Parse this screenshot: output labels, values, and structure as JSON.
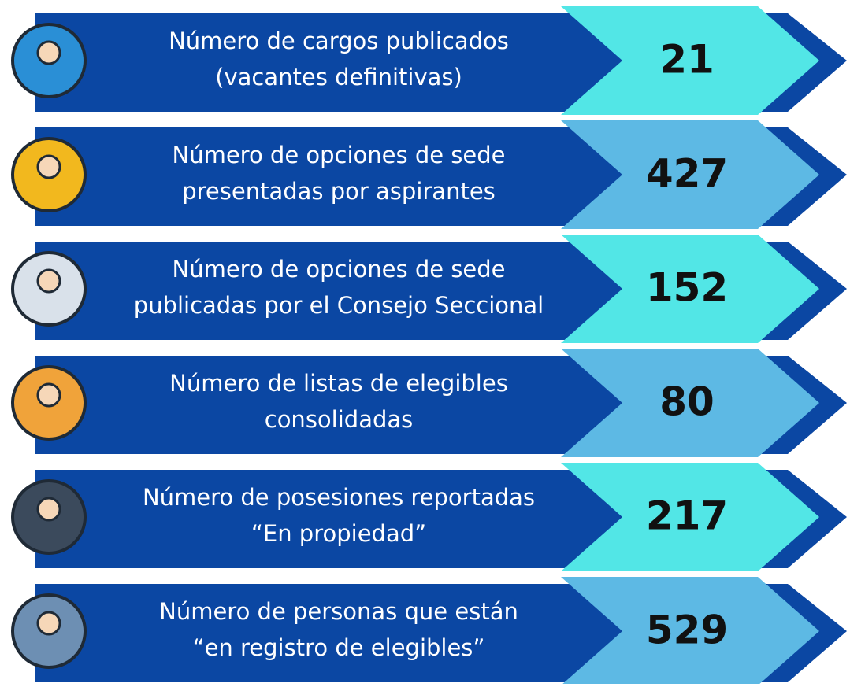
{
  "rows": [
    {
      "label": [
        "Número de cargos publicados",
        "(vacantes definitivas)"
      ],
      "value": 21
    },
    {
      "label": [
        "Número de opciones de sede",
        "presentadas por aspirantes"
      ],
      "value": 427
    },
    {
      "label": [
        "Número de opciones de sede",
        "publicadas por el Consejo Seccional"
      ],
      "value": 152
    },
    {
      "label": [
        "Número de listas de elegibles",
        "consolidadas"
      ],
      "value": 80
    },
    {
      "label": [
        "Número de posesiones reportadas",
        "“En propiedad”"
      ],
      "value": 217
    },
    {
      "label": [
        "Número de personas que están",
        "“en registro de elegibles”"
      ],
      "value": 529
    }
  ]
}
